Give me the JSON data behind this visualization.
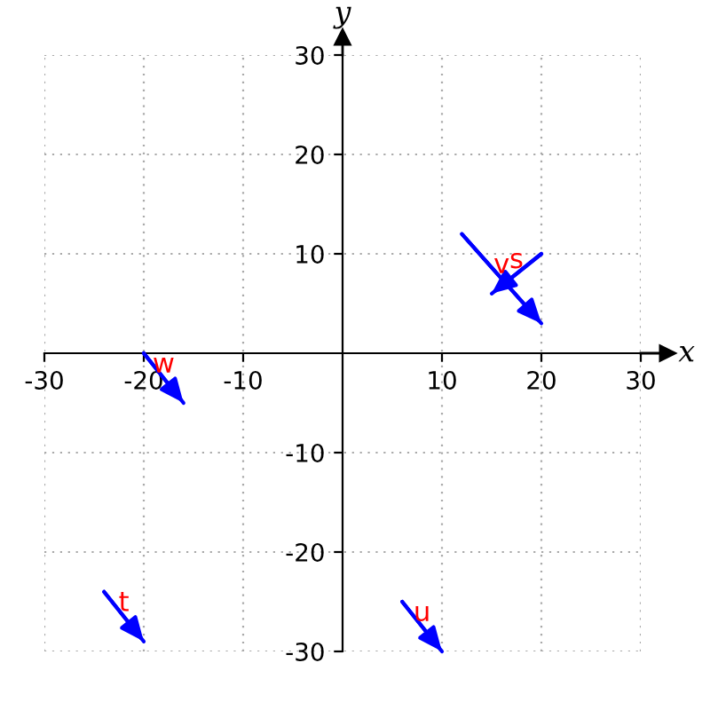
{
  "chart_data": {
    "type": "line",
    "xlabel": "x",
    "ylabel": "y",
    "series": [
      {
        "name": "s",
        "color": "#0000ff",
        "x": [
          20,
          15
        ],
        "values": [
          10,
          6
        ]
      },
      {
        "name": "t",
        "color": "#0000ff",
        "x": [
          -24,
          -20
        ],
        "values": [
          -24,
          -29
        ]
      },
      {
        "name": "u",
        "color": "#0000ff",
        "x": [
          6,
          10
        ],
        "values": [
          -25,
          -30
        ]
      },
      {
        "name": "v",
        "color": "#0000ff",
        "x": [
          12,
          20
        ],
        "values": [
          12,
          3
        ]
      },
      {
        "name": "w",
        "color": "#0000ff",
        "x": [
          -20,
          -16
        ],
        "values": [
          0,
          -5
        ]
      }
    ],
    "xlim": [
      -30,
      30
    ],
    "ylim": [
      -30,
      30
    ],
    "xticks": [
      -30,
      -20,
      -10,
      10,
      20,
      30
    ],
    "yticks": [
      -30,
      -20,
      -10,
      10,
      20,
      30
    ],
    "grid": true,
    "marker": "none",
    "line_style": "solid"
  }
}
